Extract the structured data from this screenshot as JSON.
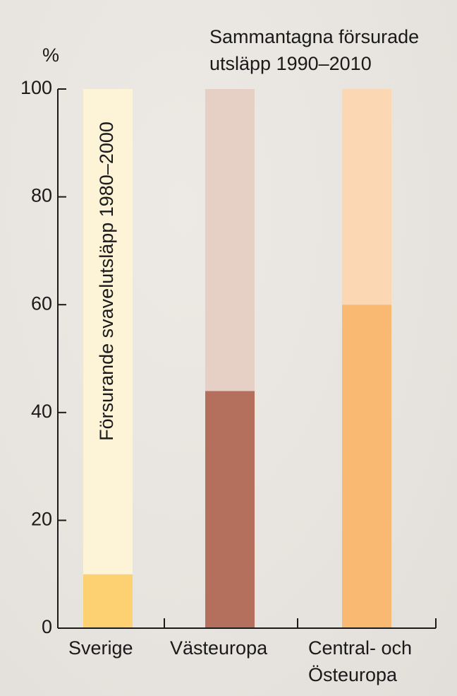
{
  "chart_data": {
    "type": "stacked_bar",
    "y_label": "%",
    "annotations": [
      "Sammantagna försurade\nutsläpp 1990–2010",
      "Försurande svavelutsläpp 1980–2000"
    ],
    "categories": [
      "Sverige",
      "Västeuropa",
      "Central- och\nÖsteuropa"
    ],
    "series": [
      {
        "colors": [
          "#fdd072",
          "#b5705d",
          "#f9b972"
        ],
        "values": [
          10,
          44,
          60
        ]
      },
      {
        "colors": [
          "#fdf3d6",
          "#e6d0c5",
          "#fbd8b3"
        ],
        "values": [
          90,
          56,
          40
        ]
      }
    ],
    "ylim": [
      0,
      100
    ],
    "yticks": [
      0,
      20,
      40,
      60,
      80,
      100
    ]
  }
}
